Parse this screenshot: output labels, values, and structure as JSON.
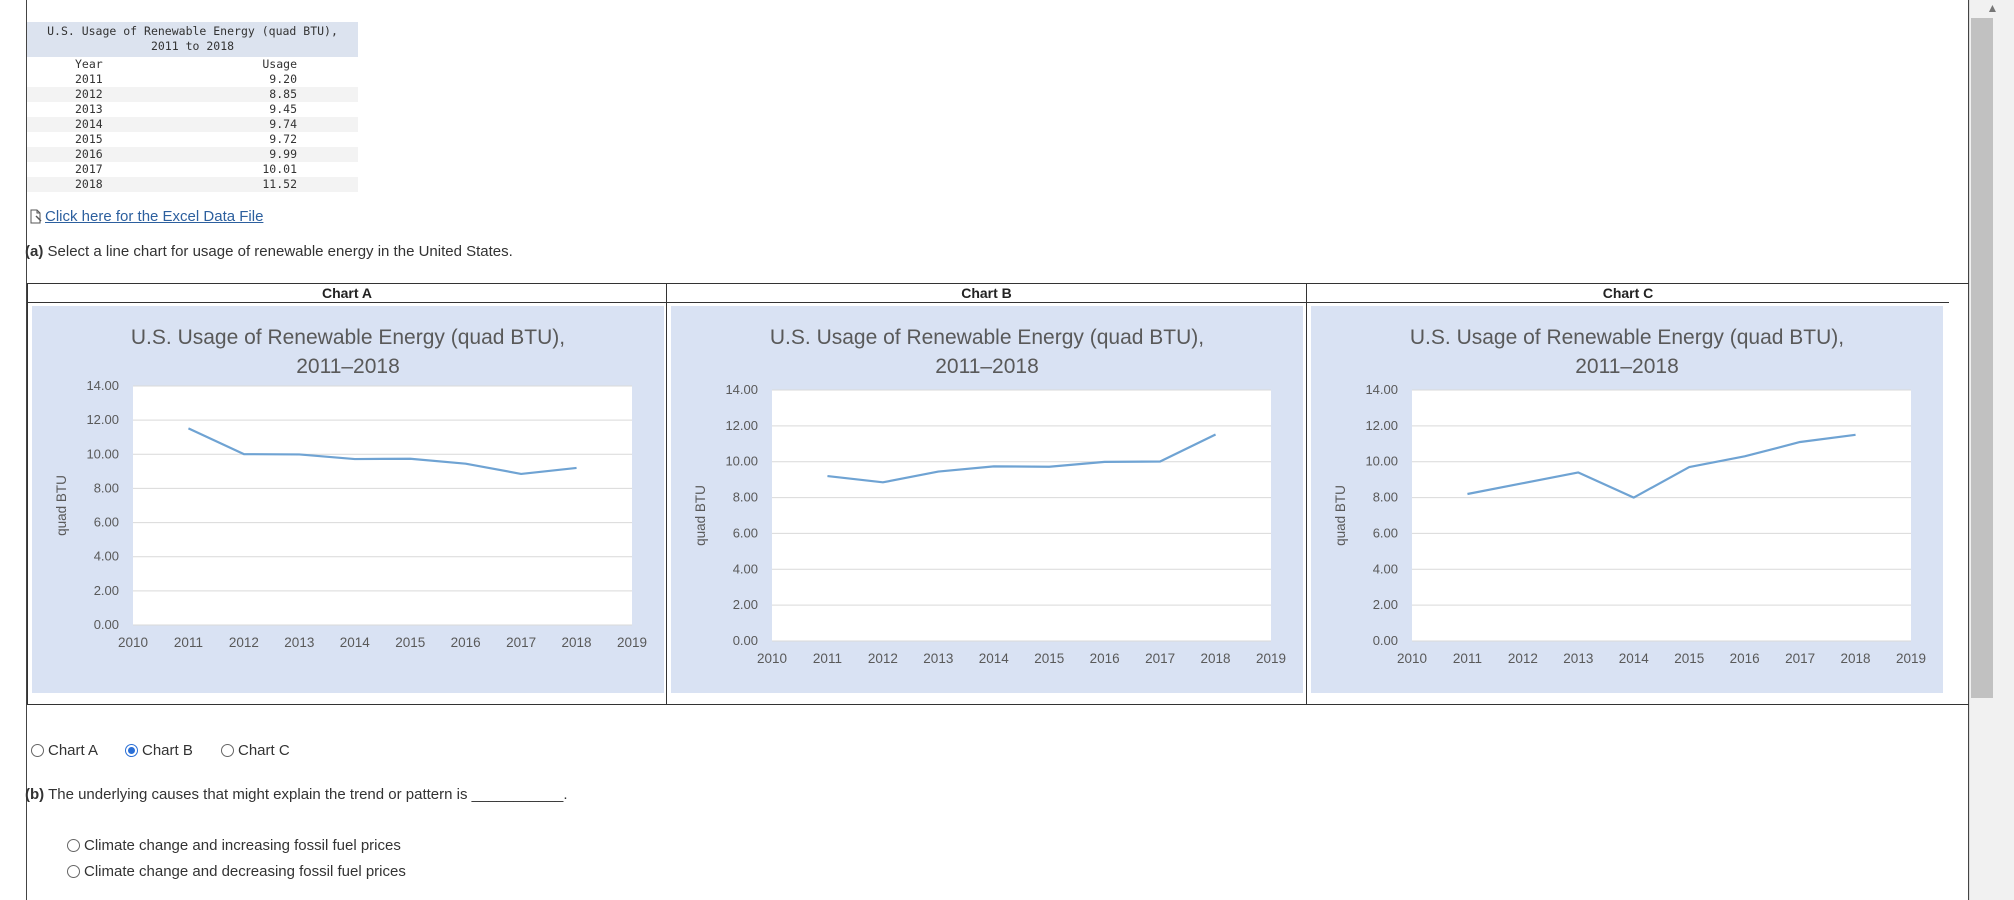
{
  "table": {
    "title_line1": "U.S. Usage of Renewable Energy (quad BTU),",
    "title_line2": "2011 to 2018",
    "col_year": "Year",
    "col_usage": "Usage",
    "rows": [
      {
        "year": "2011",
        "usage": "9.20"
      },
      {
        "year": "2012",
        "usage": "8.85"
      },
      {
        "year": "2013",
        "usage": "9.45"
      },
      {
        "year": "2014",
        "usage": "9.74"
      },
      {
        "year": "2015",
        "usage": "9.72"
      },
      {
        "year": "2016",
        "usage": "9.99"
      },
      {
        "year": "2017",
        "usage": "10.01"
      },
      {
        "year": "2018",
        "usage": "11.52"
      }
    ]
  },
  "excel_link": "Click here for the Excel Data File",
  "question_a": {
    "label": "(a)",
    "text": "Select a line chart for usage of renewable energy in the United States."
  },
  "question_b": {
    "label": "(b)",
    "text": "The underlying causes that might explain the trend or pattern is ___________."
  },
  "options_a": [
    {
      "label": "Chart A",
      "checked": false
    },
    {
      "label": "Chart B",
      "checked": true
    },
    {
      "label": "Chart C",
      "checked": false
    }
  ],
  "options_b": [
    {
      "label": "Climate change and increasing fossil fuel prices",
      "checked": false
    },
    {
      "label": "Climate change and decreasing fossil fuel prices",
      "checked": false
    }
  ],
  "colors": {
    "panel_bg": "#d9e2f3",
    "line": "#6fa3d3",
    "grid": "#d9d9d9"
  },
  "chart_data": [
    {
      "type": "line",
      "panel_label": "Chart A",
      "title": "U.S. Usage of Renewable Energy (quad BTU), 2011–2018",
      "title_line1": "U.S. Usage of Renewable Energy (quad BTU),",
      "title_line2": "2011–2018",
      "ylabel": "quad BTU",
      "xlabel": "",
      "x": [
        2011,
        2012,
        2013,
        2014,
        2015,
        2016,
        2017,
        2018
      ],
      "values": [
        11.52,
        10.01,
        9.99,
        9.72,
        9.74,
        9.45,
        8.85,
        9.2
      ],
      "xlim": [
        2010,
        2019
      ],
      "ylim": [
        0,
        14
      ],
      "xticks": [
        "2010",
        "2011",
        "2012",
        "2013",
        "2014",
        "2015",
        "2016",
        "2017",
        "2018",
        "2019"
      ],
      "yticks": [
        "0.00",
        "2.00",
        "4.00",
        "6.00",
        "8.00",
        "10.00",
        "12.00",
        "14.00"
      ],
      "grid": true
    },
    {
      "type": "line",
      "panel_label": "Chart B",
      "title": "U.S. Usage of Renewable Energy (quad BTU), 2011–2018",
      "title_line1": "U.S. Usage of Renewable Energy (quad BTU),",
      "title_line2": "2011–2018",
      "ylabel": "quad BTU",
      "xlabel": "",
      "x": [
        2011,
        2012,
        2013,
        2014,
        2015,
        2016,
        2017,
        2018
      ],
      "values": [
        9.2,
        8.85,
        9.45,
        9.74,
        9.72,
        9.99,
        10.01,
        11.52
      ],
      "xlim": [
        2010,
        2019
      ],
      "ylim": [
        0,
        14
      ],
      "xticks": [
        "2010",
        "2011",
        "2012",
        "2013",
        "2014",
        "2015",
        "2016",
        "2017",
        "2018",
        "2019"
      ],
      "yticks": [
        "0.00",
        "2.00",
        "4.00",
        "6.00",
        "8.00",
        "10.00",
        "12.00",
        "14.00"
      ],
      "grid": true
    },
    {
      "type": "line",
      "panel_label": "Chart C",
      "title": "U.S. Usage of Renewable Energy (quad BTU), 2011–2018",
      "title_line1": "U.S. Usage of Renewable Energy (quad BTU),",
      "title_line2": "2011–2018",
      "ylabel": "quad BTU",
      "xlabel": "",
      "x": [
        2011,
        2012,
        2013,
        2014,
        2015,
        2016,
        2017,
        2018
      ],
      "values": [
        8.2,
        8.8,
        9.4,
        8.0,
        9.7,
        10.3,
        11.1,
        11.5
      ],
      "xlim": [
        2010,
        2019
      ],
      "ylim": [
        0,
        14
      ],
      "xticks": [
        "2010",
        "2011",
        "2012",
        "2013",
        "2014",
        "2015",
        "2016",
        "2017",
        "2018",
        "2019"
      ],
      "yticks": [
        "0.00",
        "2.00",
        "4.00",
        "6.00",
        "8.00",
        "10.00",
        "12.00",
        "14.00"
      ],
      "grid": true
    }
  ]
}
